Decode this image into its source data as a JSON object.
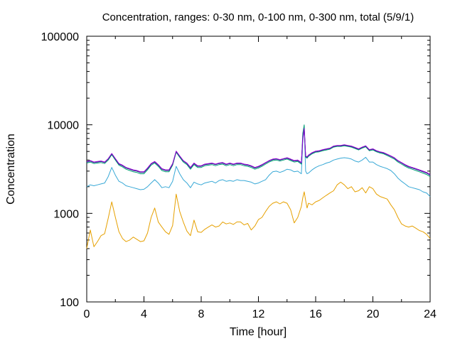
{
  "chart_data": {
    "type": "line",
    "title": "Concentration, ranges: 0-30 nm, 0-100 nm, 0-300 nm, total (5/9/1)",
    "xlabel": "Time [hour]",
    "ylabel": "Concentration",
    "xlim": [
      0,
      24
    ],
    "ylim": [
      100,
      100000
    ],
    "yscale": "log",
    "x_ticks": [
      0,
      4,
      8,
      12,
      16,
      20,
      24
    ],
    "x_tick_labels": [
      "0",
      "4",
      "8",
      "12",
      "16",
      "20",
      "24"
    ],
    "y_ticks": [
      100,
      1000,
      10000,
      100000
    ],
    "y_tick_labels": [
      "100",
      "1000",
      "10000",
      "100000"
    ],
    "grid": false,
    "x": [
      0,
      0.25,
      0.5,
      0.75,
      1.0,
      1.25,
      1.5,
      1.75,
      2.0,
      2.25,
      2.5,
      2.75,
      3.0,
      3.25,
      3.5,
      3.75,
      4.0,
      4.25,
      4.5,
      4.75,
      5.0,
      5.25,
      5.5,
      5.75,
      6.0,
      6.25,
      6.5,
      6.75,
      7.0,
      7.25,
      7.5,
      7.75,
      8.0,
      8.25,
      8.5,
      8.75,
      9.0,
      9.25,
      9.5,
      9.75,
      10.0,
      10.25,
      10.5,
      10.75,
      11.0,
      11.25,
      11.5,
      11.75,
      12.0,
      12.25,
      12.5,
      12.75,
      13.0,
      13.25,
      13.5,
      13.75,
      14.0,
      14.25,
      14.5,
      14.75,
      15.0,
      15.1,
      15.2,
      15.3,
      15.4,
      15.5,
      15.75,
      16.0,
      16.25,
      16.5,
      16.75,
      17.0,
      17.25,
      17.5,
      17.75,
      18.0,
      18.25,
      18.5,
      18.75,
      19.0,
      19.25,
      19.5,
      19.75,
      20.0,
      20.25,
      20.5,
      20.75,
      21.0,
      21.25,
      21.5,
      21.75,
      22.0,
      22.25,
      22.5,
      22.75,
      23.0,
      23.25,
      23.5,
      23.75,
      24.0
    ],
    "series": [
      {
        "color": "#e6a000",
        "values": [
          400,
          650,
          420,
          480,
          560,
          590,
          880,
          1350,
          900,
          620,
          520,
          480,
          500,
          540,
          510,
          480,
          490,
          600,
          900,
          1150,
          800,
          700,
          620,
          580,
          730,
          1650,
          1050,
          800,
          630,
          560,
          840,
          620,
          610,
          660,
          700,
          740,
          700,
          720,
          800,
          760,
          780,
          750,
          800,
          800,
          740,
          770,
          650,
          720,
          850,
          900,
          1050,
          1200,
          1300,
          1350,
          1280,
          1350,
          1300,
          1100,
          780,
          900,
          1200,
          1500,
          1750,
          1400,
          1150,
          1300,
          1250,
          1350,
          1400,
          1500,
          1600,
          1700,
          1800,
          2100,
          2250,
          2100,
          1900,
          2000,
          1750,
          1800,
          1950,
          1700,
          2000,
          1900,
          1650,
          1550,
          1500,
          1450,
          1250,
          1100,
          900,
          760,
          720,
          700,
          720,
          680,
          640,
          620,
          580,
          520
        ]
      },
      {
        "color": "#37a8d6",
        "values": [
          2000,
          2100,
          2050,
          2100,
          2150,
          2200,
          2600,
          3300,
          2700,
          2300,
          2200,
          2050,
          2000,
          1950,
          1900,
          1850,
          1870,
          2000,
          2200,
          2400,
          2200,
          1950,
          2000,
          1950,
          2300,
          3400,
          2800,
          2400,
          2200,
          1950,
          2250,
          2150,
          2100,
          2200,
          2250,
          2300,
          2200,
          2350,
          2400,
          2300,
          2350,
          2300,
          2400,
          2350,
          2350,
          2300,
          2250,
          2150,
          2200,
          2300,
          2400,
          2700,
          2950,
          3000,
          2900,
          3000,
          3150,
          3100,
          2950,
          3000,
          2800,
          6500,
          9500,
          3000,
          2800,
          2850,
          3100,
          3300,
          3450,
          3550,
          3700,
          3800,
          4000,
          4100,
          4200,
          4250,
          4200,
          4100,
          3900,
          3800,
          4000,
          4300,
          3800,
          3800,
          3550,
          3400,
          3300,
          3200,
          3050,
          2800,
          2500,
          2300,
          2150,
          2000,
          1950,
          1900,
          1850,
          1750,
          1700,
          1550
        ]
      },
      {
        "color": "#009e73",
        "values": [
          3700,
          3800,
          3650,
          3700,
          3750,
          3650,
          4000,
          4600,
          4000,
          3500,
          3350,
          3150,
          3050,
          2950,
          2900,
          2800,
          2800,
          3100,
          3500,
          3700,
          3400,
          3050,
          2950,
          2950,
          3500,
          4900,
          4300,
          3800,
          3550,
          3150,
          3550,
          3300,
          3300,
          3450,
          3500,
          3550,
          3450,
          3550,
          3600,
          3450,
          3550,
          3450,
          3550,
          3550,
          3450,
          3400,
          3300,
          3150,
          3250,
          3400,
          3600,
          3800,
          3950,
          4000,
          3900,
          4000,
          4100,
          3950,
          3800,
          3850,
          3600,
          8000,
          10000,
          4300,
          4200,
          4400,
          4700,
          4900,
          4950,
          5100,
          5200,
          5300,
          5600,
          5700,
          5700,
          5800,
          5700,
          5600,
          5400,
          5200,
          5450,
          5650,
          5100,
          5200,
          4950,
          4800,
          4700,
          4500,
          4300,
          4100,
          3800,
          3600,
          3400,
          3250,
          3150,
          3050,
          2950,
          2850,
          2750,
          2600
        ]
      },
      {
        "color": "#1e2a87",
        "values": [
          3800,
          3900,
          3750,
          3800,
          3850,
          3750,
          4100,
          4700,
          4100,
          3600,
          3450,
          3250,
          3150,
          3050,
          3000,
          2900,
          2900,
          3200,
          3600,
          3800,
          3500,
          3150,
          3050,
          3050,
          3600,
          5000,
          4400,
          3900,
          3650,
          3250,
          3650,
          3400,
          3400,
          3550,
          3600,
          3650,
          3550,
          3650,
          3700,
          3550,
          3650,
          3550,
          3650,
          3650,
          3550,
          3500,
          3400,
          3250,
          3350,
          3500,
          3700,
          3900,
          4050,
          4100,
          4000,
          4100,
          4200,
          4050,
          3900,
          3950,
          3700,
          7000,
          9000,
          4400,
          4300,
          4500,
          4800,
          5000,
          5050,
          5200,
          5300,
          5400,
          5700,
          5800,
          5800,
          5900,
          5800,
          5700,
          5500,
          5300,
          5550,
          5750,
          5200,
          5300,
          5050,
          4900,
          4800,
          4600,
          4400,
          4200,
          3900,
          3700,
          3500,
          3350,
          3250,
          3150,
          3050,
          2950,
          2850,
          2700
        ]
      },
      {
        "color": "#9400d3",
        "values": [
          3850,
          3950,
          3800,
          3850,
          3900,
          3800,
          4150,
          4750,
          4150,
          3650,
          3500,
          3300,
          3200,
          3100,
          3050,
          2950,
          2950,
          3250,
          3650,
          3850,
          3550,
          3200,
          3100,
          3100,
          3650,
          5050,
          4450,
          3950,
          3700,
          3300,
          3700,
          3450,
          3450,
          3600,
          3650,
          3700,
          3600,
          3700,
          3750,
          3600,
          3700,
          3600,
          3700,
          3700,
          3600,
          3550,
          3450,
          3300,
          3400,
          3550,
          3750,
          3950,
          4100,
          4150,
          4050,
          4150,
          4250,
          4100,
          3950,
          4000,
          3750,
          7100,
          9100,
          4450,
          4350,
          4550,
          4850,
          5050,
          5100,
          5250,
          5350,
          5450,
          5750,
          5850,
          5850,
          5950,
          5850,
          5750,
          5550,
          5350,
          5600,
          5800,
          5250,
          5350,
          5100,
          4950,
          4850,
          4650,
          4450,
          4250,
          3950,
          3750,
          3550,
          3400,
          3300,
          3200,
          3100,
          3000,
          2900,
          2750
        ]
      }
    ]
  }
}
